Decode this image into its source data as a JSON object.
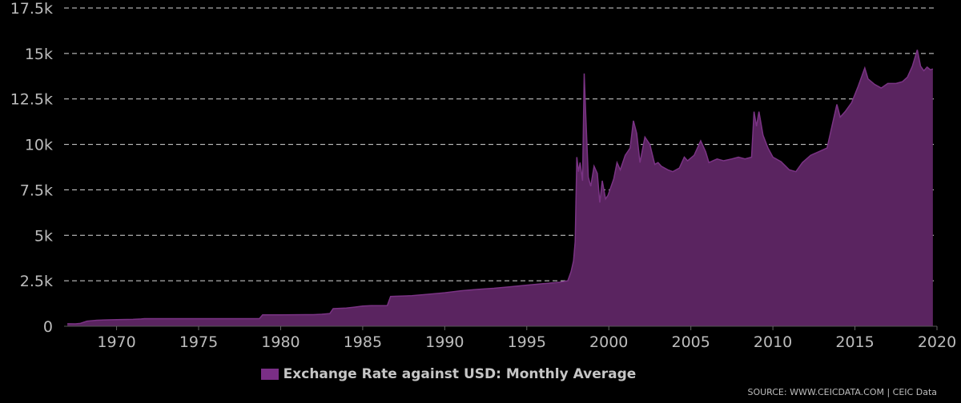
{
  "colors": {
    "background": "#000000",
    "series_fill": "#5a2460",
    "series_line": "#7a3384",
    "legend_swatch": "#7a2e86",
    "grid": "#d9d9d9",
    "text": "#bcbcbc"
  },
  "legend": {
    "label": "Exchange Rate against USD: Monthly Average"
  },
  "source": "SOURCE: WWW.CEICDATA.COM | CEIC Data",
  "chart_data": {
    "type": "area",
    "xlim": [
      1966.8,
      2020.0
    ],
    "ylim": [
      0,
      17500
    ],
    "grid": true,
    "legend_position": "bottom",
    "x_ticks": [
      "1970",
      "1975",
      "1980",
      "1985",
      "1990",
      "1995",
      "2000",
      "2005",
      "2010",
      "2015",
      "2020"
    ],
    "y_ticks": [
      {
        "value": 0,
        "label": "0"
      },
      {
        "value": 2500,
        "label": "2.5k"
      },
      {
        "value": 5000,
        "label": "5k"
      },
      {
        "value": 7500,
        "label": "7.5k"
      },
      {
        "value": 10000,
        "label": "10k"
      },
      {
        "value": 12500,
        "label": "12.5k"
      },
      {
        "value": 15000,
        "label": "15k"
      },
      {
        "value": 17500,
        "label": "17.5k"
      }
    ],
    "series": [
      {
        "name": "Exchange Rate against USD: Monthly Average",
        "points": [
          [
            1967.0,
            140
          ],
          [
            1967.5,
            130
          ],
          [
            1967.8,
            160
          ],
          [
            1968.2,
            280
          ],
          [
            1968.8,
            330
          ],
          [
            1969.5,
            350
          ],
          [
            1970.0,
            360
          ],
          [
            1970.3,
            370
          ],
          [
            1971.0,
            380
          ],
          [
            1971.5,
            400
          ],
          [
            1971.7,
            415
          ],
          [
            1972.5,
            415
          ],
          [
            1975.0,
            415
          ],
          [
            1978.7,
            415
          ],
          [
            1978.9,
            625
          ],
          [
            1980.0,
            625
          ],
          [
            1982.0,
            640
          ],
          [
            1982.5,
            660
          ],
          [
            1983.0,
            700
          ],
          [
            1983.2,
            970
          ],
          [
            1984.0,
            1000
          ],
          [
            1984.5,
            1050
          ],
          [
            1985.0,
            1110
          ],
          [
            1985.5,
            1130
          ],
          [
            1986.5,
            1140
          ],
          [
            1986.7,
            1640
          ],
          [
            1987.0,
            1650
          ],
          [
            1988.0,
            1680
          ],
          [
            1989.0,
            1760
          ],
          [
            1990.0,
            1840
          ],
          [
            1991.0,
            1950
          ],
          [
            1992.0,
            2030
          ],
          [
            1993.0,
            2090
          ],
          [
            1994.0,
            2170
          ],
          [
            1995.0,
            2260
          ],
          [
            1996.0,
            2340
          ],
          [
            1997.0,
            2420
          ],
          [
            1997.5,
            2500
          ],
          [
            1997.7,
            3000
          ],
          [
            1997.85,
            3600
          ],
          [
            1997.95,
            4650
          ],
          [
            1998.05,
            9300
          ],
          [
            1998.15,
            8500
          ],
          [
            1998.25,
            9000
          ],
          [
            1998.4,
            8000
          ],
          [
            1998.5,
            13900
          ],
          [
            1998.6,
            11500
          ],
          [
            1998.75,
            8200
          ],
          [
            1998.9,
            7700
          ],
          [
            1999.1,
            8800
          ],
          [
            1999.3,
            8400
          ],
          [
            1999.45,
            6800
          ],
          [
            1999.6,
            8000
          ],
          [
            1999.8,
            7000
          ],
          [
            1999.95,
            7200
          ],
          [
            2000.3,
            8100
          ],
          [
            2000.5,
            9000
          ],
          [
            2000.7,
            8600
          ],
          [
            2001.0,
            9400
          ],
          [
            2001.3,
            9800
          ],
          [
            2001.5,
            11300
          ],
          [
            2001.7,
            10600
          ],
          [
            2001.9,
            9000
          ],
          [
            2002.2,
            10400
          ],
          [
            2002.5,
            10000
          ],
          [
            2002.8,
            8900
          ],
          [
            2003.0,
            9000
          ],
          [
            2003.2,
            8800
          ],
          [
            2003.6,
            8600
          ],
          [
            2003.9,
            8500
          ],
          [
            2004.3,
            8700
          ],
          [
            2004.6,
            9300
          ],
          [
            2004.8,
            9100
          ],
          [
            2005.2,
            9400
          ],
          [
            2005.6,
            10200
          ],
          [
            2005.9,
            9600
          ],
          [
            2006.1,
            9000
          ],
          [
            2006.6,
            9200
          ],
          [
            2007.0,
            9100
          ],
          [
            2007.5,
            9200
          ],
          [
            2007.9,
            9300
          ],
          [
            2008.3,
            9200
          ],
          [
            2008.7,
            9300
          ],
          [
            2008.85,
            11800
          ],
          [
            2009.0,
            11000
          ],
          [
            2009.15,
            11800
          ],
          [
            2009.4,
            10500
          ],
          [
            2009.7,
            9800
          ],
          [
            2010.0,
            9300
          ],
          [
            2010.5,
            9050
          ],
          [
            2011.0,
            8600
          ],
          [
            2011.4,
            8500
          ],
          [
            2011.8,
            9000
          ],
          [
            2012.3,
            9400
          ],
          [
            2012.8,
            9600
          ],
          [
            2013.3,
            9800
          ],
          [
            2013.6,
            11000
          ],
          [
            2013.9,
            12200
          ],
          [
            2014.1,
            11500
          ],
          [
            2014.4,
            11800
          ],
          [
            2014.8,
            12300
          ],
          [
            2015.2,
            13200
          ],
          [
            2015.6,
            14200
          ],
          [
            2015.8,
            13600
          ],
          [
            2016.2,
            13300
          ],
          [
            2016.6,
            13100
          ],
          [
            2017.0,
            13350
          ],
          [
            2017.5,
            13350
          ],
          [
            2017.9,
            13450
          ],
          [
            2018.2,
            13700
          ],
          [
            2018.5,
            14300
          ],
          [
            2018.8,
            15200
          ],
          [
            2019.0,
            14300
          ],
          [
            2019.2,
            14050
          ],
          [
            2019.4,
            14250
          ],
          [
            2019.6,
            14100
          ],
          [
            2019.75,
            14150
          ]
        ]
      }
    ]
  }
}
